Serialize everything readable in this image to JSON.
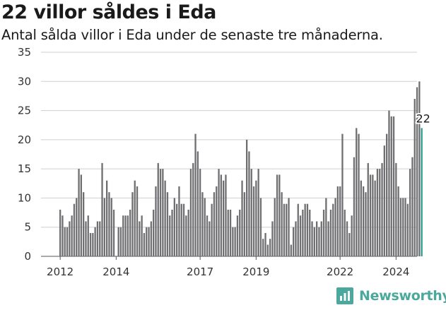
{
  "header": {
    "title": "22 villor såldes i Eda",
    "subtitle": "Antal sålda villor i Eda under de senaste tre månaderna."
  },
  "brand": {
    "name": "Newsworthy",
    "color": "#4aa89c"
  },
  "colors": {
    "bar": "#6f6f72",
    "highlight": "#2a9d8f",
    "grid": "#cfcfcf"
  },
  "chart_data": {
    "type": "bar",
    "title": "22 villor såldes i Eda",
    "subtitle": "Antal sålda villor i Eda under de senaste tre månaderna.",
    "xlabel": "",
    "ylabel": "",
    "ylim": [
      0,
      35
    ],
    "yticks": [
      0,
      5,
      10,
      15,
      20,
      25,
      30,
      35
    ],
    "grid": true,
    "x_tick_labels": [
      "2012",
      "2014",
      "2017",
      "2019",
      "2022",
      "2024"
    ],
    "x_tick_index": [
      0,
      24,
      60,
      84,
      120,
      144
    ],
    "values": [
      8,
      7,
      5,
      5,
      6,
      7,
      9,
      10,
      15,
      14,
      11,
      6,
      7,
      4,
      4,
      5,
      6,
      6,
      16,
      10,
      13,
      11,
      10,
      8,
      0,
      5,
      5,
      7,
      7,
      7,
      8,
      11,
      13,
      12,
      6,
      7,
      4,
      5,
      5,
      6,
      8,
      12,
      16,
      15,
      15,
      13,
      11,
      7,
      8,
      10,
      9,
      12,
      9,
      9,
      7,
      8,
      15,
      16,
      21,
      18,
      15,
      11,
      10,
      7,
      6,
      9,
      11,
      12,
      15,
      14,
      13,
      14,
      8,
      8,
      5,
      5,
      7,
      8,
      13,
      11,
      20,
      18,
      15,
      12,
      13,
      15,
      10,
      3,
      4,
      2,
      3,
      6,
      10,
      14,
      14,
      11,
      9,
      9,
      10,
      2,
      5,
      6,
      9,
      7,
      8,
      9,
      9,
      8,
      6,
      5,
      6,
      5,
      6,
      8,
      10,
      6,
      8,
      9,
      10,
      12,
      12,
      21,
      8,
      6,
      4,
      7,
      17,
      22,
      21,
      13,
      12,
      11,
      16,
      14,
      14,
      13,
      15,
      15,
      16,
      19,
      21,
      25,
      24,
      24,
      16,
      12,
      10,
      10,
      10,
      9,
      15,
      17,
      27,
      29,
      30,
      22
    ],
    "highlight_last": true,
    "annotations": [
      {
        "text": "22",
        "target": "last"
      }
    ]
  }
}
